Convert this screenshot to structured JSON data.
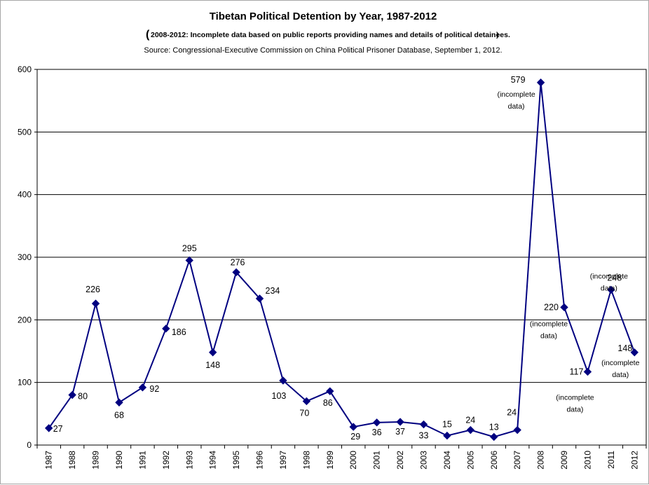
{
  "chart_data": {
    "type": "line",
    "title": "Tibetan Political Detention by Year, 1987-2012",
    "subtitle": "2008-2012: Incomplete data based on public reports providing names and details of political detainees.",
    "source": "Source: Congressional-Executive Commission on China Political Prisoner Database, September 1, 2012.",
    "xlabel": "",
    "ylabel": "",
    "ylim": [
      0,
      600
    ],
    "yticks": [
      0,
      100,
      200,
      300,
      400,
      500,
      600
    ],
    "grid": "horizontal",
    "legend": "none",
    "categories": [
      "1987",
      "1988",
      "1989",
      "1990",
      "1991",
      "1992",
      "1993",
      "1994",
      "1995",
      "1996",
      "1997",
      "1998",
      "1999",
      "2000",
      "2001",
      "2002",
      "2003",
      "2004",
      "2005",
      "2006",
      "2007",
      "2008",
      "2009",
      "2010",
      "2011",
      "2012"
    ],
    "series": [
      {
        "values": [
          27,
          80,
          226,
          68,
          92,
          186,
          295,
          148,
          276,
          234,
          103,
          70,
          86,
          29,
          36,
          37,
          33,
          15,
          24,
          13,
          24,
          579,
          220,
          117,
          248,
          148
        ],
        "color": "#000080"
      }
    ],
    "annotations": [
      {
        "year": "2008",
        "value": 579,
        "note": [
          "(incomplete",
          "data)"
        ]
      },
      {
        "year": "2009",
        "value": 220,
        "note": [
          "(incomplete",
          "data)"
        ]
      },
      {
        "year": "2010",
        "value": 117,
        "note": [
          "(incomplete",
          "data)"
        ]
      },
      {
        "year": "2011",
        "value": 248,
        "note": [
          "(incomplete",
          "data)"
        ]
      },
      {
        "year": "2012",
        "value": 148,
        "note": [
          "(incomplete",
          "data)"
        ]
      }
    ]
  }
}
